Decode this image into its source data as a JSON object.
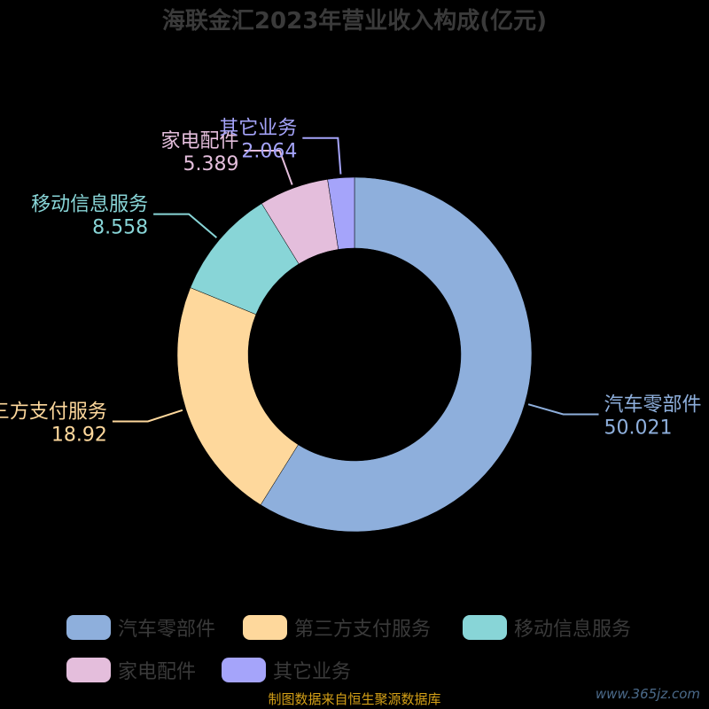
{
  "chart_data": {
    "type": "pie",
    "title": "海联金汇2023年营业收入构成(亿元)",
    "categories": [
      "汽车零部件",
      "第三方支付服务",
      "移动信息服务",
      "家电配件",
      "其它业务"
    ],
    "values": [
      50.021,
      18.92,
      8.558,
      5.389,
      2.064
    ],
    "value_labels": [
      "50.021",
      "18.92",
      "8.558",
      "5.389",
      "2.064"
    ],
    "colors": [
      "#8eafdc",
      "#fed89c",
      "#88d5d7",
      "#e4bedc",
      "#a5a4fa"
    ],
    "legend_position": "bottom"
  },
  "footer": "制图数据来自恒生聚源数据库",
  "watermark": "www.365jz.com"
}
